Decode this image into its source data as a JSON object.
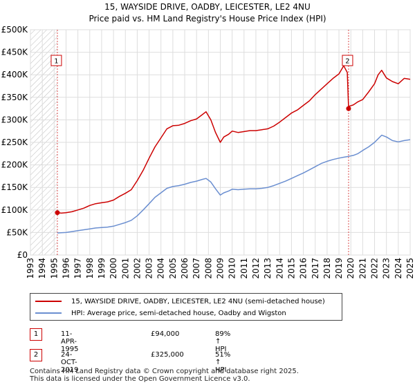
{
  "chart_data": {
    "type": "line",
    "title": "15, WAYSIDE DRIVE, OADBY, LEICESTER, LE2 4NU",
    "subtitle": "Price paid vs. HM Land Registry's House Price Index (HPI)",
    "xlim": [
      1993.0,
      2025.0
    ],
    "ylim": [
      0,
      500000
    ],
    "x_ticks": [
      "1993",
      "1994",
      "1995",
      "1996",
      "1997",
      "1998",
      "1999",
      "2000",
      "2001",
      "2002",
      "2003",
      "2004",
      "2005",
      "2006",
      "2007",
      "2008",
      "2009",
      "2010",
      "2011",
      "2012",
      "2013",
      "2014",
      "2015",
      "2016",
      "2017",
      "2018",
      "2019",
      "2020",
      "2021",
      "2022",
      "2023",
      "2024",
      "2025"
    ],
    "y_ticks": [
      {
        "value": 0,
        "label": "£0"
      },
      {
        "value": 50000,
        "label": "£50K"
      },
      {
        "value": 100000,
        "label": "£100K"
      },
      {
        "value": 150000,
        "label": "£150K"
      },
      {
        "value": 200000,
        "label": "£200K"
      },
      {
        "value": 250000,
        "label": "£250K"
      },
      {
        "value": 300000,
        "label": "£300K"
      },
      {
        "value": 350000,
        "label": "£350K"
      },
      {
        "value": 400000,
        "label": "£400K"
      },
      {
        "value": 450000,
        "label": "£450K"
      },
      {
        "value": 500000,
        "label": "£500K"
      }
    ],
    "hatched_region": [
      1993.0,
      1995.27
    ],
    "series": [
      {
        "name": "15, WAYSIDE DRIVE, OADBY, LEICESTER, LE2 4NU (semi-detached house)",
        "color": "#cc0000",
        "x": [
          1995.27,
          1995.6,
          1996.0,
          1996.5,
          1997.0,
          1997.5,
          1998.0,
          1998.5,
          1999.0,
          1999.5,
          2000.0,
          2000.5,
          2001.0,
          2001.5,
          2002.0,
          2002.5,
          2003.0,
          2003.5,
          2004.0,
          2004.5,
          2005.0,
          2005.5,
          2006.0,
          2006.5,
          2007.0,
          2007.5,
          2007.8,
          2008.2,
          2008.6,
          2009.0,
          2009.3,
          2009.7,
          2010.0,
          2010.5,
          2011.0,
          2011.5,
          2012.0,
          2012.5,
          2013.0,
          2013.5,
          2014.0,
          2014.5,
          2015.0,
          2015.5,
          2016.0,
          2016.5,
          2017.0,
          2017.5,
          2018.0,
          2018.5,
          2019.0,
          2019.4,
          2019.7,
          2019.81,
          2019.83,
          2020.2,
          2020.6,
          2021.0,
          2021.5,
          2022.0,
          2022.3,
          2022.6,
          2023.0,
          2023.5,
          2024.0,
          2024.5,
          2025.0
        ],
        "values": [
          94000,
          93000,
          94000,
          96000,
          100000,
          104000,
          110000,
          114000,
          116000,
          118000,
          122000,
          130000,
          137000,
          145000,
          165000,
          188000,
          215000,
          240000,
          260000,
          280000,
          287000,
          288000,
          292000,
          298000,
          302000,
          312000,
          318000,
          300000,
          272000,
          250000,
          262000,
          268000,
          275000,
          272000,
          274000,
          276000,
          276000,
          278000,
          280000,
          286000,
          295000,
          305000,
          315000,
          322000,
          332000,
          342000,
          356000,
          368000,
          380000,
          392000,
          402000,
          420000,
          405000,
          325000,
          330000,
          333000,
          340000,
          345000,
          362000,
          380000,
          400000,
          410000,
          393000,
          385000,
          380000,
          392000,
          390000
        ]
      },
      {
        "name": "HPI: Average price, semi-detached house, Oadby and Wigston",
        "color": "#6a8ed0",
        "x": [
          1995.27,
          1995.6,
          1996.0,
          1996.5,
          1997.0,
          1997.5,
          1998.0,
          1998.5,
          1999.0,
          1999.5,
          2000.0,
          2000.5,
          2001.0,
          2001.5,
          2002.0,
          2002.5,
          2003.0,
          2003.5,
          2004.0,
          2004.5,
          2005.0,
          2005.5,
          2006.0,
          2006.5,
          2007.0,
          2007.5,
          2007.8,
          2008.2,
          2008.6,
          2009.0,
          2009.3,
          2009.7,
          2010.0,
          2010.5,
          2011.0,
          2011.5,
          2012.0,
          2012.5,
          2013.0,
          2013.5,
          2014.0,
          2014.5,
          2015.0,
          2015.5,
          2016.0,
          2016.5,
          2017.0,
          2017.5,
          2018.0,
          2018.5,
          2019.0,
          2019.4,
          2019.83,
          2020.2,
          2020.6,
          2021.0,
          2021.5,
          2022.0,
          2022.3,
          2022.6,
          2023.0,
          2023.5,
          2024.0,
          2024.5,
          2025.0
        ],
        "values": [
          49000,
          49500,
          50000,
          52000,
          54000,
          56000,
          58000,
          60000,
          61000,
          62000,
          64000,
          68000,
          72000,
          77000,
          87000,
          100000,
          114000,
          128000,
          138000,
          148000,
          152000,
          154000,
          157000,
          161000,
          164000,
          168000,
          170000,
          162000,
          147000,
          133000,
          138000,
          142000,
          146000,
          145000,
          146000,
          147000,
          147000,
          148000,
          150000,
          154000,
          159000,
          164000,
          170000,
          176000,
          182000,
          189000,
          196000,
          203000,
          208000,
          212000,
          215000,
          217000,
          219000,
          221000,
          225000,
          232000,
          240000,
          250000,
          258000,
          266000,
          262000,
          254000,
          251000,
          254000,
          256000
        ]
      }
    ],
    "markers": [
      {
        "label": "1",
        "x": 1995.27,
        "price": 94000
      },
      {
        "label": "2",
        "x": 2019.81,
        "price": 325000
      }
    ],
    "legend": [
      {
        "label": "15, WAYSIDE DRIVE, OADBY, LEICESTER, LE2 4NU (semi-detached house)",
        "color": "#cc0000"
      },
      {
        "label": "HPI: Average price, semi-detached house, Oadby and Wigston",
        "color": "#6a8ed0"
      }
    ]
  },
  "annotations": [
    {
      "label": "1",
      "date": "11-APR-1995",
      "price": "£94,000",
      "hpi": "89% ↑ HPI"
    },
    {
      "label": "2",
      "date": "24-OCT-2019",
      "price": "£325,000",
      "hpi": "51% ↑ HPI"
    }
  ],
  "footer": {
    "line1": "Contains HM Land Registry data © Crown copyright and database right 2025.",
    "line2": "This data is licensed under the Open Government Licence v3.0."
  }
}
